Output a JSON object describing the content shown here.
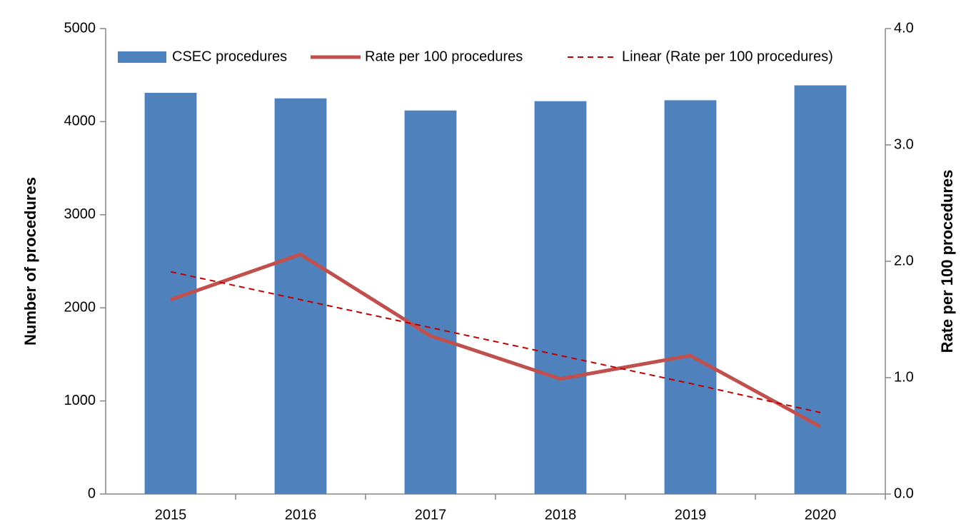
{
  "chart_data": {
    "type": "bar",
    "categories": [
      "2015",
      "2016",
      "2017",
      "2018",
      "2019",
      "2020"
    ],
    "series": [
      {
        "name": "CSEC procedures",
        "type": "bar",
        "color": "#4f81bd",
        "values": [
          4310,
          4250,
          4120,
          4220,
          4230,
          4390
        ]
      },
      {
        "name": "Rate per 100 procedures",
        "type": "line",
        "axis": "y2",
        "color": "#c0504d",
        "values": [
          1.67,
          2.06,
          1.36,
          0.99,
          1.19,
          0.58
        ]
      },
      {
        "name": "Linear (Rate per 100 procedures)",
        "type": "line",
        "axis": "y2",
        "dashed": true,
        "color": "#c00000",
        "values": [
          1.91,
          1.67,
          1.43,
          1.19,
          0.95,
          0.7
        ]
      }
    ],
    "ylabel": "Number of procedures",
    "y2label": "Rate per 100 procedures",
    "ylim": [
      0,
      5000
    ],
    "yticks": [
      0,
      1000,
      2000,
      3000,
      4000,
      5000
    ],
    "y2lim": [
      0,
      4
    ],
    "y2ticks": [
      {
        "value": 0,
        "label": "0.0"
      },
      {
        "value": 1,
        "label": "1.0"
      },
      {
        "value": 2,
        "label": "2.0"
      },
      {
        "value": 3,
        "label": "3.0"
      },
      {
        "value": 4,
        "label": "4.0"
      }
    ],
    "legend": "top",
    "grid": false
  }
}
